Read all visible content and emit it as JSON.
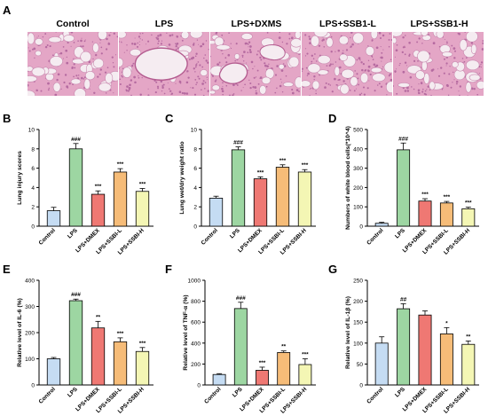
{
  "figure": {
    "panel_A": {
      "letter": "A",
      "images": [
        {
          "title": "Control",
          "tissue_density": 0.55,
          "alveoli": "small"
        },
        {
          "title": "LPS",
          "tissue_density": 0.8,
          "alveoli": "large-vessel"
        },
        {
          "title": "LPS+DXMS",
          "tissue_density": 0.62,
          "alveoli": "vessel"
        },
        {
          "title": "LPS+SSB1-L",
          "tissue_density": 0.7,
          "alveoli": "small"
        },
        {
          "title": "LPS+SSB1-H",
          "tissue_density": 0.6,
          "alveoli": "small"
        }
      ]
    },
    "colors": {
      "fills": [
        "#c5dcf3",
        "#9dd6a2",
        "#ef7873",
        "#f6bc78",
        "#f4f6b4"
      ],
      "stroke": "#000000",
      "tissue_pink": "#e4a6c6",
      "tissue_purple": "#b56aa0",
      "alveolus": "#f5ecf1"
    }
  },
  "chart_data": [
    {
      "letter": "B",
      "type": "bar",
      "categories": [
        "Control",
        "LPS",
        "LPS+DMEX",
        "LPS+SSBI-L",
        "LPS+SSBI-H"
      ],
      "values": [
        1.6,
        8.0,
        3.3,
        5.6,
        3.6
      ],
      "errors": [
        0.35,
        0.55,
        0.35,
        0.35,
        0.3
      ],
      "annotations": [
        "",
        "###",
        "***",
        "***",
        "***"
      ],
      "ylabel": "Lung injury scores",
      "ylim": [
        0,
        10
      ],
      "yticks": [
        0,
        2,
        4,
        6,
        8,
        10
      ]
    },
    {
      "letter": "C",
      "type": "bar",
      "categories": [
        "Control",
        "LPS",
        "LPS+DMEX",
        "LPS+SSBI-L",
        "LPS+SSBI-H"
      ],
      "values": [
        2.9,
        7.9,
        4.9,
        6.1,
        5.6
      ],
      "errors": [
        0.2,
        0.3,
        0.2,
        0.25,
        0.25
      ],
      "annotations": [
        "",
        "###",
        "***",
        "***",
        "***"
      ],
      "ylabel": "Lung wet/dry weight ratio",
      "ylim": [
        0,
        10
      ],
      "yticks": [
        0,
        2,
        4,
        6,
        8,
        10
      ]
    },
    {
      "letter": "D",
      "type": "bar",
      "categories": [
        "Control",
        "LPS",
        "LPS+DMEX",
        "LPS+SSBI-L",
        "LPS+SSBI-H"
      ],
      "values": [
        15,
        395,
        130,
        120,
        90
      ],
      "errors": [
        5,
        35,
        12,
        8,
        8
      ],
      "annotations": [
        "",
        "###",
        "***",
        "***",
        "***"
      ],
      "ylabel": "Numbers of white blood cells(*10^4)",
      "ylim": [
        0,
        500
      ],
      "yticks": [
        0,
        100,
        200,
        300,
        400,
        500
      ]
    },
    {
      "letter": "E",
      "type": "bar",
      "categories": [
        "Control",
        "LPS",
        "LPS+DMEX",
        "LPS+SSBI-L",
        "LPS+SSBI-H"
      ],
      "values": [
        100,
        322,
        218,
        165,
        128
      ],
      "errors": [
        5,
        6,
        25,
        15,
        15
      ],
      "annotations": [
        "",
        "###",
        "**",
        "***",
        "***"
      ],
      "ylabel": "Relative level of IL-6 (%)",
      "ylim": [
        0,
        400
      ],
      "yticks": [
        0,
        100,
        200,
        300,
        400
      ]
    },
    {
      "letter": "F",
      "type": "bar",
      "categories": [
        "Control",
        "LPS",
        "LPS+DMEX",
        "LPS+SSBI-L",
        "LPS+SSBI-H"
      ],
      "values": [
        100,
        730,
        140,
        310,
        195
      ],
      "errors": [
        8,
        60,
        30,
        15,
        55
      ],
      "annotations": [
        "",
        "###",
        "***",
        "**",
        "***"
      ],
      "ylabel": "Relative level of TNF-α (%)",
      "ylim": [
        0,
        1000
      ],
      "yticks": [
        0,
        200,
        400,
        600,
        800,
        1000
      ]
    },
    {
      "letter": "G",
      "type": "bar",
      "categories": [
        "Control",
        "LPS",
        "LPS+DMEX",
        "LPS+SSBI-L",
        "LPS+SSBI-H"
      ],
      "values": [
        100,
        182,
        167,
        122,
        97
      ],
      "errors": [
        15,
        12,
        10,
        15,
        8
      ],
      "annotations": [
        "",
        "##",
        "",
        "*",
        "**"
      ],
      "ylabel": "Relative level of IL-1β (%)",
      "ylim": [
        0,
        250
      ],
      "yticks": [
        0,
        50,
        100,
        150,
        200,
        250
      ]
    }
  ]
}
